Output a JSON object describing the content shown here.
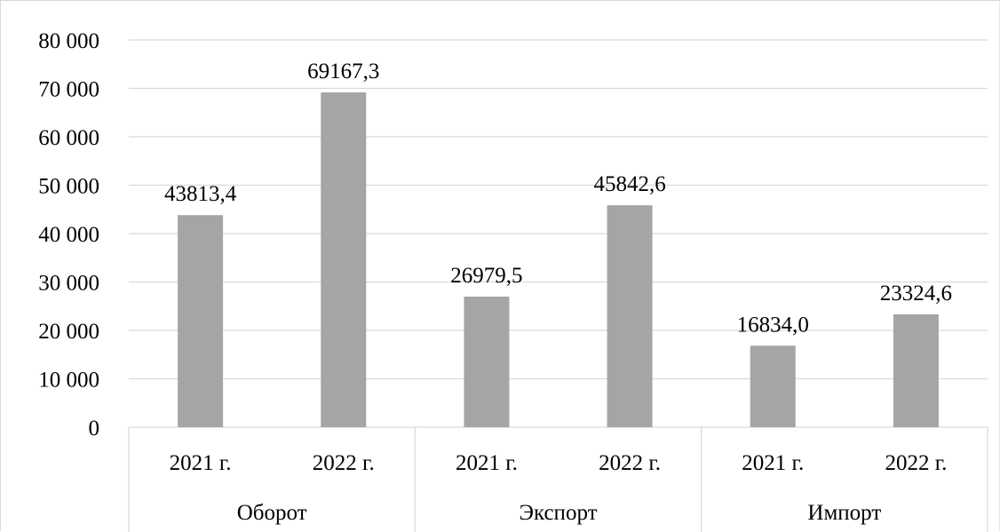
{
  "chart_data": {
    "type": "bar",
    "title": "",
    "xlabel": "",
    "ylabel": "",
    "ylim": [
      0,
      80000
    ],
    "yticks": [
      0,
      10000,
      20000,
      30000,
      40000,
      50000,
      60000,
      70000,
      80000
    ],
    "ytick_labels": [
      "0",
      "10 000",
      "20 000",
      "30 000",
      "40 000",
      "50 000",
      "60 000",
      "70 000",
      "80 000"
    ],
    "grid": true,
    "legend": "none",
    "bar_color": "#a5a5a5",
    "groups": [
      {
        "name": "Оборот",
        "categories": [
          "2021 г.",
          "2022 г."
        ],
        "values": [
          43813.4,
          69167.3
        ],
        "labels": [
          "43813,4",
          "69167,3"
        ]
      },
      {
        "name": "Экспорт",
        "categories": [
          "2021 г.",
          "2022 г."
        ],
        "values": [
          26979.5,
          45842.6
        ],
        "labels": [
          "26979,5",
          "45842,6"
        ]
      },
      {
        "name": "Импорт",
        "categories": [
          "2021 г.",
          "2022 г."
        ],
        "values": [
          16834.0,
          23324.6
        ],
        "labels": [
          "16834,0",
          "23324,6"
        ]
      }
    ]
  }
}
